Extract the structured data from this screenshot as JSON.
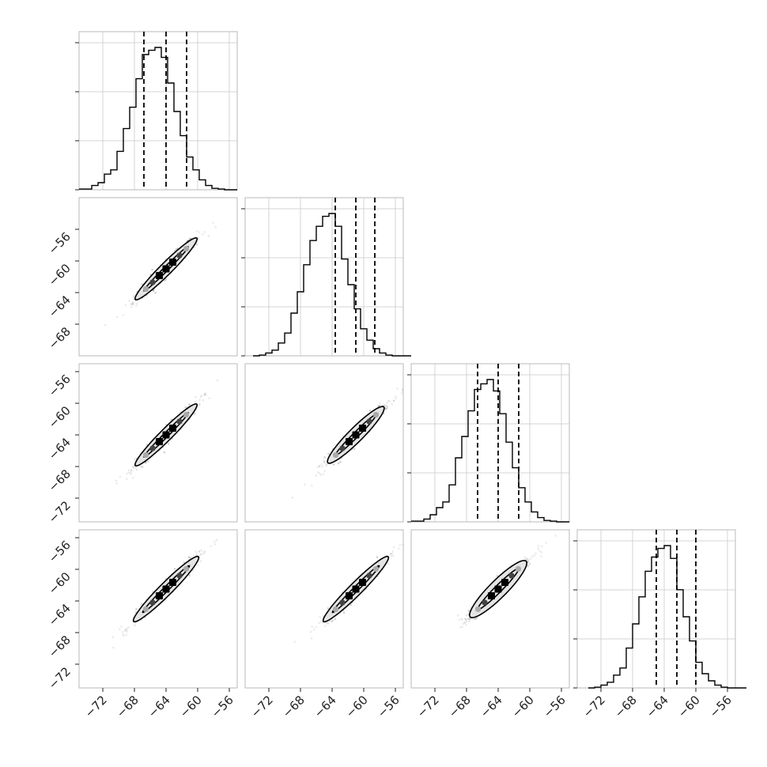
{
  "chart_data": {
    "type": "corner",
    "parameters": [
      "",
      "",
      "",
      ""
    ],
    "axis_range": [
      -75,
      -55
    ],
    "axis_range_row1": [
      -72,
      -52
    ],
    "xticks": [
      -72,
      -68,
      -64,
      -60,
      -56
    ],
    "yticks_row1": [
      -68,
      -64,
      -60,
      -56
    ],
    "yticks": [
      -72,
      -68,
      -64,
      -60,
      -56
    ],
    "grid": true,
    "histograms": [
      {
        "param": 1,
        "bin_edges_start": -75,
        "bin_width": 0.8,
        "counts": [
          0.005,
          0.005,
          0.03,
          0.05,
          0.11,
          0.14,
          0.27,
          0.43,
          0.58,
          0.78,
          0.95,
          0.98,
          1.0,
          0.93,
          0.75,
          0.55,
          0.38,
          0.23,
          0.14,
          0.07,
          0.03,
          0.01,
          0.005,
          0.0,
          0.0
        ],
        "quantiles": [
          -66.8,
          -64.0,
          -61.4
        ]
      },
      {
        "param": 2,
        "bin_edges_start": -74,
        "bin_width": 0.8,
        "counts": [
          0.0,
          0.005,
          0.02,
          0.04,
          0.09,
          0.16,
          0.3,
          0.45,
          0.64,
          0.81,
          0.91,
          0.98,
          1.0,
          0.91,
          0.68,
          0.5,
          0.33,
          0.19,
          0.11,
          0.05,
          0.02,
          0.005,
          0.0,
          0.0,
          0.0
        ],
        "quantiles": [
          -63.6,
          -61.0,
          -58.6
        ]
      },
      {
        "param": 3,
        "bin_edges_start": -75,
        "bin_width": 0.8,
        "counts": [
          0.005,
          0.005,
          0.02,
          0.05,
          0.1,
          0.14,
          0.26,
          0.45,
          0.6,
          0.78,
          0.93,
          0.97,
          1.0,
          0.92,
          0.76,
          0.56,
          0.38,
          0.24,
          0.14,
          0.07,
          0.03,
          0.01,
          0.005,
          0.0,
          0.0
        ],
        "quantiles": [
          -66.6,
          -64.0,
          -61.4
        ]
      },
      {
        "param": 4,
        "bin_edges_start": -73.6,
        "bin_width": 0.8,
        "counts": [
          0.0,
          0.005,
          0.02,
          0.04,
          0.09,
          0.14,
          0.28,
          0.45,
          0.64,
          0.82,
          0.92,
          0.98,
          1.0,
          0.91,
          0.69,
          0.5,
          0.33,
          0.18,
          0.1,
          0.05,
          0.02,
          0.005,
          0.0,
          0.0,
          0.0
        ],
        "quantiles": [
          -65.0,
          -62.4,
          -60.0
        ]
      }
    ],
    "pairs": [
      {
        "x": 1,
        "y": 2,
        "center": [
          -64.0,
          -61.0
        ],
        "slope": 1.0,
        "inner_halfwidth": 0.5,
        "outer_halfwidth": 0.75,
        "half_length": 5.5
      },
      {
        "x": 1,
        "y": 3,
        "center": [
          -64.0,
          -64.0
        ],
        "slope": 1.0,
        "inner_halfwidth": 0.5,
        "outer_halfwidth": 0.75,
        "half_length": 5.5
      },
      {
        "x": 2,
        "y": 3,
        "center": [
          -61.0,
          -64.0
        ],
        "slope": 1.0,
        "inner_halfwidth": 0.6,
        "outer_halfwidth": 0.9,
        "half_length": 5.0
      },
      {
        "x": 1,
        "y": 4,
        "center": [
          -64.0,
          -62.5
        ],
        "slope": 1.0,
        "inner_halfwidth": 0.55,
        "outer_halfwidth": 0.8,
        "half_length": 5.8
      },
      {
        "x": 2,
        "y": 4,
        "center": [
          -61.0,
          -62.5
        ],
        "slope": 1.0,
        "inner_halfwidth": 0.55,
        "outer_halfwidth": 0.8,
        "half_length": 5.8
      },
      {
        "x": 3,
        "y": 4,
        "center": [
          -64.0,
          -62.5
        ],
        "slope": 1.0,
        "inner_halfwidth": 0.8,
        "outer_halfwidth": 1.1,
        "half_length": 5.0
      }
    ]
  }
}
